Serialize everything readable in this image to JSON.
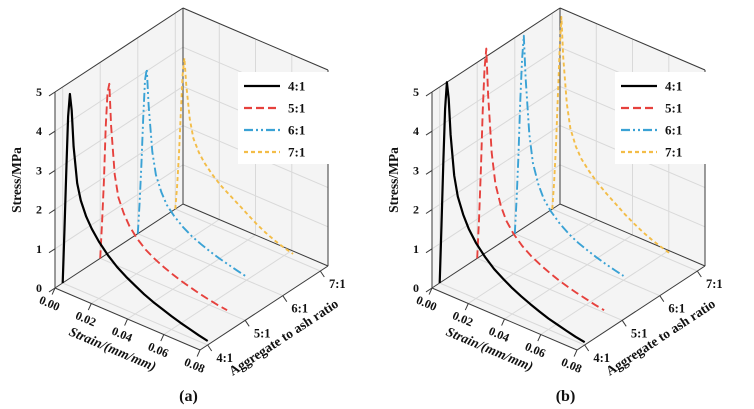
{
  "figure": {
    "captions": [
      "(a)",
      "(b)"
    ]
  },
  "chart_data": [
    {
      "type": "line",
      "projection": "3d-waterfall",
      "xlabel": "Strain/(mm/mm)",
      "ylabel": "Aggregate to ash ratio",
      "zlabel": "Stress/MPa",
      "xlim": [
        0,
        0.08
      ],
      "zlim": [
        0,
        5
      ],
      "x_tick_labels": [
        "0.00",
        "0.02",
        "0.04",
        "0.06",
        "0.08"
      ],
      "x_tick_values": [
        0,
        0.02,
        0.04,
        0.06,
        0.08
      ],
      "z_tick_labels": [
        "0",
        "1",
        "2",
        "3",
        "4",
        "5"
      ],
      "z_tick_values": [
        0,
        1,
        2,
        3,
        4,
        5
      ],
      "categories": [
        "4:1",
        "5:1",
        "6:1",
        "7:1"
      ],
      "grid": true,
      "legend": {
        "position": "top-right",
        "labels": [
          "4:1",
          "5:1",
          "6:1",
          "7:1"
        ]
      },
      "series": [
        {
          "name": "4:1",
          "color": "#000000",
          "dash": "solid",
          "strain": [
            0,
            0.001,
            0.002,
            0.003,
            0.004,
            0.005,
            0.006,
            0.008,
            0.01,
            0.013,
            0.016,
            0.02,
            0.025,
            0.03,
            0.035,
            0.04,
            0.045,
            0.05,
            0.055,
            0.06,
            0.065,
            0.07,
            0.075,
            0.08
          ],
          "stress": [
            0,
            1.4,
            2.9,
            4.3,
            4.9,
            4.5,
            3.6,
            2.7,
            2.3,
            1.95,
            1.7,
            1.45,
            1.2,
            1.0,
            0.85,
            0.72,
            0.6,
            0.5,
            0.42,
            0.34,
            0.27,
            0.21,
            0.15,
            0.1
          ]
        },
        {
          "name": "5:1",
          "color": "#e6413d",
          "dash": "dashed",
          "strain": [
            0,
            0.001,
            0.002,
            0.003,
            0.004,
            0.005,
            0.006,
            0.008,
            0.01,
            0.013,
            0.016,
            0.02,
            0.025,
            0.03,
            0.035,
            0.04,
            0.045,
            0.05,
            0.055,
            0.06,
            0.065,
            0.07
          ],
          "stress": [
            0,
            0.9,
            2.0,
            3.4,
            4.3,
            4.55,
            3.5,
            2.3,
            1.75,
            1.4,
            1.15,
            0.92,
            0.72,
            0.58,
            0.47,
            0.38,
            0.3,
            0.24,
            0.18,
            0.13,
            0.09,
            0.06
          ]
        },
        {
          "name": "6:1",
          "color": "#3aa2d5",
          "dash": "dash-dot-dot",
          "strain": [
            0,
            0.001,
            0.002,
            0.003,
            0.004,
            0.005,
            0.006,
            0.008,
            0.01,
            0.013,
            0.016,
            0.02,
            0.025,
            0.03,
            0.035,
            0.04,
            0.045,
            0.05,
            0.055,
            0.06
          ],
          "stress": [
            0,
            0.8,
            1.8,
            3.0,
            4.0,
            4.3,
            3.4,
            2.25,
            1.7,
            1.32,
            1.05,
            0.85,
            0.66,
            0.52,
            0.42,
            0.33,
            0.26,
            0.2,
            0.14,
            0.09
          ]
        },
        {
          "name": "7:1",
          "color": "#f3bd48",
          "dash": "short-dash",
          "strain": [
            0,
            0.001,
            0.002,
            0.003,
            0.004,
            0.005,
            0.006,
            0.008,
            0.01,
            0.013,
            0.016,
            0.02,
            0.025,
            0.03,
            0.035,
            0.04,
            0.045,
            0.05,
            0.055,
            0.06,
            0.065
          ],
          "stress": [
            0,
            0.6,
            1.4,
            2.5,
            3.5,
            3.95,
            3.3,
            2.45,
            2.0,
            1.7,
            1.5,
            1.3,
            1.1,
            0.95,
            0.8,
            0.65,
            0.5,
            0.38,
            0.28,
            0.2,
            0.14
          ]
        }
      ]
    },
    {
      "type": "line",
      "projection": "3d-waterfall",
      "xlabel": "Strain/(mm/mm)",
      "ylabel": "Aggregate to ash ratio",
      "zlabel": "Stress/MPa",
      "xlim": [
        0,
        0.08
      ],
      "zlim": [
        0,
        5
      ],
      "x_tick_labels": [
        "0.00",
        "0.02",
        "0.04",
        "0.06",
        "0.08"
      ],
      "x_tick_values": [
        0,
        0.02,
        0.04,
        0.06,
        0.08
      ],
      "z_tick_labels": [
        "0",
        "1",
        "2",
        "3",
        "4",
        "5"
      ],
      "z_tick_values": [
        0,
        1,
        2,
        3,
        4,
        5
      ],
      "categories": [
        "4:1",
        "5:1",
        "6:1",
        "7:1"
      ],
      "grid": true,
      "legend": {
        "position": "top-right",
        "labels": [
          "4:1",
          "5:1",
          "6:1",
          "7:1"
        ]
      },
      "series": [
        {
          "name": "4:1",
          "color": "#000000",
          "dash": "solid",
          "strain": [
            0,
            0.001,
            0.002,
            0.003,
            0.004,
            0.005,
            0.006,
            0.008,
            0.01,
            0.013,
            0.016,
            0.02,
            0.025,
            0.03,
            0.035,
            0.04,
            0.045,
            0.05,
            0.055,
            0.06,
            0.065,
            0.07,
            0.075,
            0.08
          ],
          "stress": [
            0,
            1.5,
            3.1,
            4.5,
            5.2,
            4.8,
            3.9,
            2.9,
            2.4,
            2.0,
            1.7,
            1.42,
            1.16,
            0.95,
            0.8,
            0.66,
            0.55,
            0.45,
            0.36,
            0.28,
            0.22,
            0.16,
            0.11,
            0.07
          ]
        },
        {
          "name": "5:1",
          "color": "#e6413d",
          "dash": "dashed",
          "strain": [
            0,
            0.001,
            0.002,
            0.003,
            0.004,
            0.005,
            0.006,
            0.008,
            0.01,
            0.013,
            0.016,
            0.02,
            0.025,
            0.03,
            0.035,
            0.04,
            0.045,
            0.05,
            0.055,
            0.06,
            0.065,
            0.07
          ],
          "stress": [
            0,
            1.0,
            2.3,
            3.8,
            4.9,
            5.45,
            4.3,
            2.85,
            2.1,
            1.6,
            1.28,
            1.02,
            0.8,
            0.64,
            0.52,
            0.42,
            0.33,
            0.26,
            0.2,
            0.15,
            0.1,
            0.06
          ]
        },
        {
          "name": "6:1",
          "color": "#3aa2d5",
          "dash": "dash-dot-dot",
          "strain": [
            0,
            0.001,
            0.002,
            0.003,
            0.004,
            0.005,
            0.006,
            0.008,
            0.01,
            0.013,
            0.016,
            0.02,
            0.025,
            0.03,
            0.035,
            0.04,
            0.045,
            0.05,
            0.055,
            0.06
          ],
          "stress": [
            0,
            0.9,
            2.0,
            3.4,
            4.5,
            5.15,
            4.1,
            2.7,
            2.0,
            1.52,
            1.2,
            0.96,
            0.74,
            0.58,
            0.46,
            0.37,
            0.29,
            0.22,
            0.16,
            0.11
          ]
        },
        {
          "name": "7:1",
          "color": "#f3bd48",
          "dash": "short-dash",
          "strain": [
            0,
            0.001,
            0.002,
            0.003,
            0.004,
            0.005,
            0.006,
            0.008,
            0.01,
            0.013,
            0.016,
            0.02,
            0.025,
            0.03,
            0.035,
            0.04,
            0.045,
            0.05,
            0.055,
            0.06,
            0.065
          ],
          "stress": [
            0,
            0.7,
            1.6,
            2.9,
            4.1,
            5.0,
            4.0,
            2.85,
            2.25,
            1.85,
            1.6,
            1.38,
            1.16,
            0.98,
            0.82,
            0.66,
            0.52,
            0.4,
            0.3,
            0.22,
            0.15
          ]
        }
      ]
    }
  ]
}
